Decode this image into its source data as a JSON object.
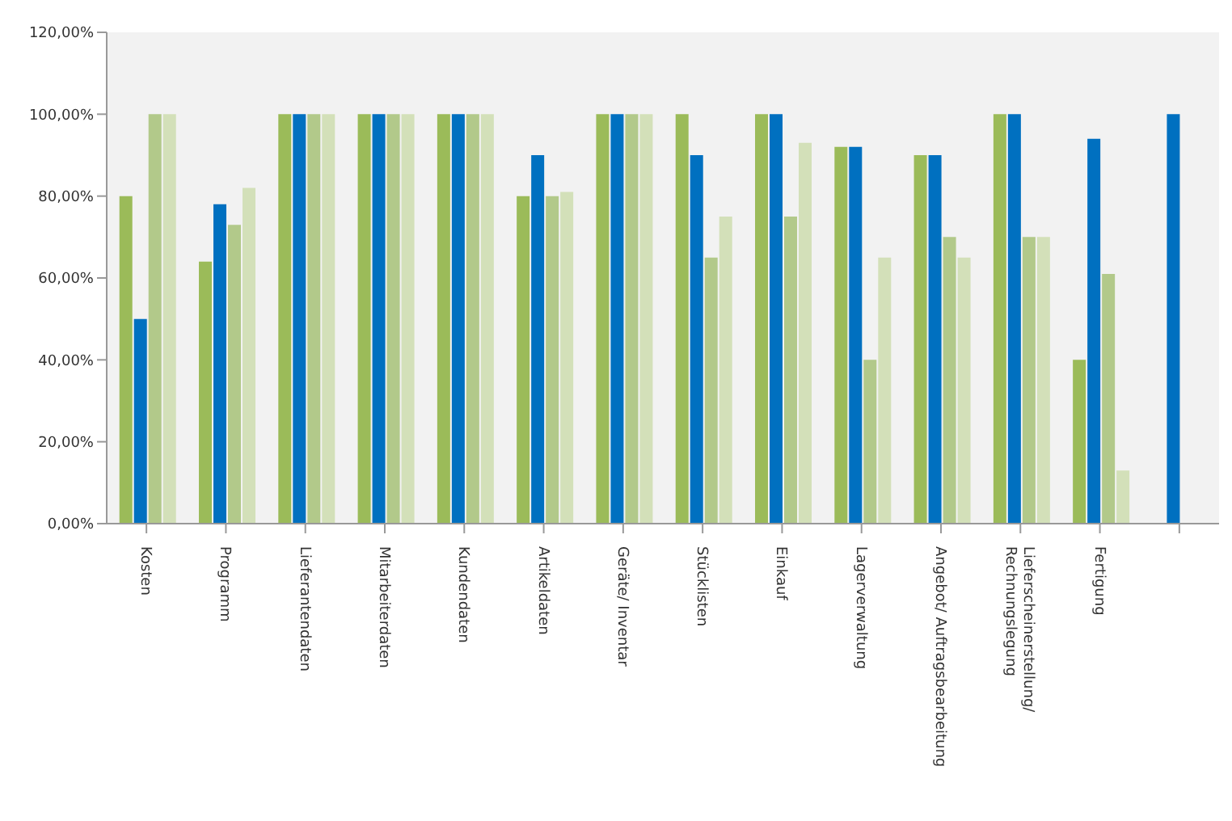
{
  "chart_data": {
    "type": "bar",
    "categories": [
      "Kosten",
      "Programm",
      "Lieferantendaten",
      "Mitarbeiterdaten",
      "Kundendaten",
      "Artikeldaten",
      "Geräte/ Inventar",
      "Stücklisten",
      "Einkauf",
      "Lagerverwaltung",
      "Angebot/ Auftragsbearbeitung",
      "Lieferscheinerstellung/\nRechnungslegung",
      "Fertigung",
      null
    ],
    "series": [
      {
        "color": "#9bbb59",
        "values": [
          80,
          64,
          100,
          100,
          100,
          80,
          100,
          100,
          100,
          92,
          90,
          100,
          40,
          null
        ]
      },
      {
        "color": "#0070c0",
        "values": [
          50,
          78,
          100,
          100,
          100,
          90,
          100,
          90,
          100,
          92,
          90,
          100,
          94,
          100
        ]
      },
      {
        "color": "#b2c98a",
        "values": [
          100,
          73,
          100,
          100,
          100,
          80,
          100,
          65,
          75,
          40,
          70,
          70,
          61,
          null
        ]
      },
      {
        "color": "#d3e0b9",
        "values": [
          100,
          82,
          100,
          100,
          100,
          81,
          100,
          75,
          93,
          65,
          65,
          70,
          13,
          null
        ]
      }
    ],
    "ylim": [
      0,
      120
    ],
    "yticks": [
      {
        "value": 0,
        "label": "0,00%"
      },
      {
        "value": 20,
        "label": "20,00%"
      },
      {
        "value": 40,
        "label": "40,00%"
      },
      {
        "value": 60,
        "label": "60,00%"
      },
      {
        "value": 80,
        "label": "80,00%"
      },
      {
        "value": 100,
        "label": "100,00%"
      },
      {
        "value": 120,
        "label": "120,00%"
      }
    ],
    "grid": false
  }
}
